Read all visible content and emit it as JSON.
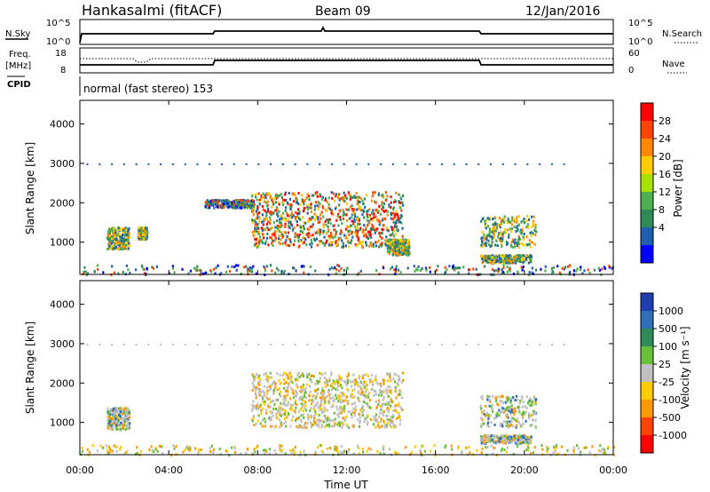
{
  "header": {
    "station": "Hankasalmi (fitACF)",
    "beam": "Beam 09",
    "date": "12/Jan/2016"
  },
  "sky_panel": {
    "left_label": "N.Sky",
    "right_label": "N.Search",
    "left_ticks": [
      "10^5",
      "10^0"
    ],
    "right_ticks": [
      "10^5",
      "10^0"
    ]
  },
  "freq_panel": {
    "left_label_1": "Freq.",
    "left_label_2": "[MHz]",
    "right_label": "Nave",
    "left_ticks": [
      "18",
      "8"
    ],
    "right_ticks": [
      "60",
      "0"
    ]
  },
  "cpid": {
    "label": "CPID",
    "text": "normal (fast stereo) 153"
  },
  "x_axis": {
    "label": "Time UT",
    "ticks": [
      "00:00",
      "04:00",
      "08:00",
      "12:00",
      "16:00",
      "20:00",
      "00:00"
    ]
  },
  "power_colorbar": {
    "label": "Power [dB]",
    "ticks": [
      "28",
      "24",
      "20",
      "16",
      "12",
      "8",
      "4"
    ],
    "colors": [
      "#ff0000",
      "#ff4400",
      "#ff8800",
      "#ffcc00",
      "#a8e000",
      "#4caf50",
      "#2e8b57",
      "#1f5fb0",
      "#0000ff"
    ]
  },
  "velocity_colorbar": {
    "label": "Velocity [m s⁻¹]",
    "ticks": [
      "1000",
      "500",
      "100",
      "25",
      "-25",
      "-100",
      "-500",
      "-1000"
    ],
    "colors": [
      "#1f3fb0",
      "#2e6fb8",
      "#2e8b57",
      "#6abf3a",
      "#c0c0c0",
      "#ffcc00",
      "#ff9900",
      "#ff4400",
      "#ff0000"
    ]
  },
  "chart_data": [
    {
      "type": "heatmap",
      "title": "Power",
      "ylabel": "Slant Range [km]",
      "xlabel": "Time UT",
      "y_ticks": [
        "1000",
        "2000",
        "3000",
        "4000"
      ],
      "ylim": [
        180,
        4600
      ],
      "xlim_hours": [
        0,
        24
      ],
      "scatter_regions": [
        {
          "t0": 0.0,
          "t1": 24.0,
          "r0": 200,
          "r1": 450,
          "level": "low"
        },
        {
          "t0": 1.2,
          "t1": 2.2,
          "r0": 850,
          "r1": 1400,
          "level": "mid"
        },
        {
          "t0": 2.6,
          "t1": 3.0,
          "r0": 1100,
          "r1": 1400,
          "level": "mid"
        },
        {
          "t0": 5.6,
          "t1": 7.8,
          "r0": 1900,
          "r1": 2100,
          "level": "low"
        },
        {
          "t0": 7.7,
          "t1": 14.5,
          "r0": 900,
          "r1": 2300,
          "level": "high"
        },
        {
          "t0": 13.8,
          "t1": 14.8,
          "r0": 700,
          "r1": 1100,
          "level": "mid"
        },
        {
          "t0": 18.0,
          "t1": 20.5,
          "r0": 900,
          "r1": 1700,
          "level": "mid"
        },
        {
          "t0": 18.0,
          "t1": 20.3,
          "r0": 500,
          "r1": 700,
          "level": "mid"
        }
      ]
    },
    {
      "type": "heatmap",
      "title": "Velocity",
      "ylabel": "Slant Range [km]",
      "xlabel": "Time UT",
      "y_ticks": [
        "1000",
        "2000",
        "3000",
        "4000"
      ],
      "ylim": [
        180,
        4600
      ],
      "xlim_hours": [
        0,
        24
      ],
      "scatter_regions": [
        {
          "t0": 0.0,
          "t1": 24.0,
          "r0": 200,
          "r1": 450,
          "level": "low"
        },
        {
          "t0": 1.2,
          "t1": 2.2,
          "r0": 850,
          "r1": 1400,
          "level": "mid"
        },
        {
          "t0": 7.7,
          "t1": 14.5,
          "r0": 900,
          "r1": 2300,
          "level": "high"
        },
        {
          "t0": 18.0,
          "t1": 20.5,
          "r0": 900,
          "r1": 1700,
          "level": "mid"
        },
        {
          "t0": 18.0,
          "t1": 20.3,
          "r0": 500,
          "r1": 700,
          "level": "mid"
        }
      ]
    }
  ]
}
